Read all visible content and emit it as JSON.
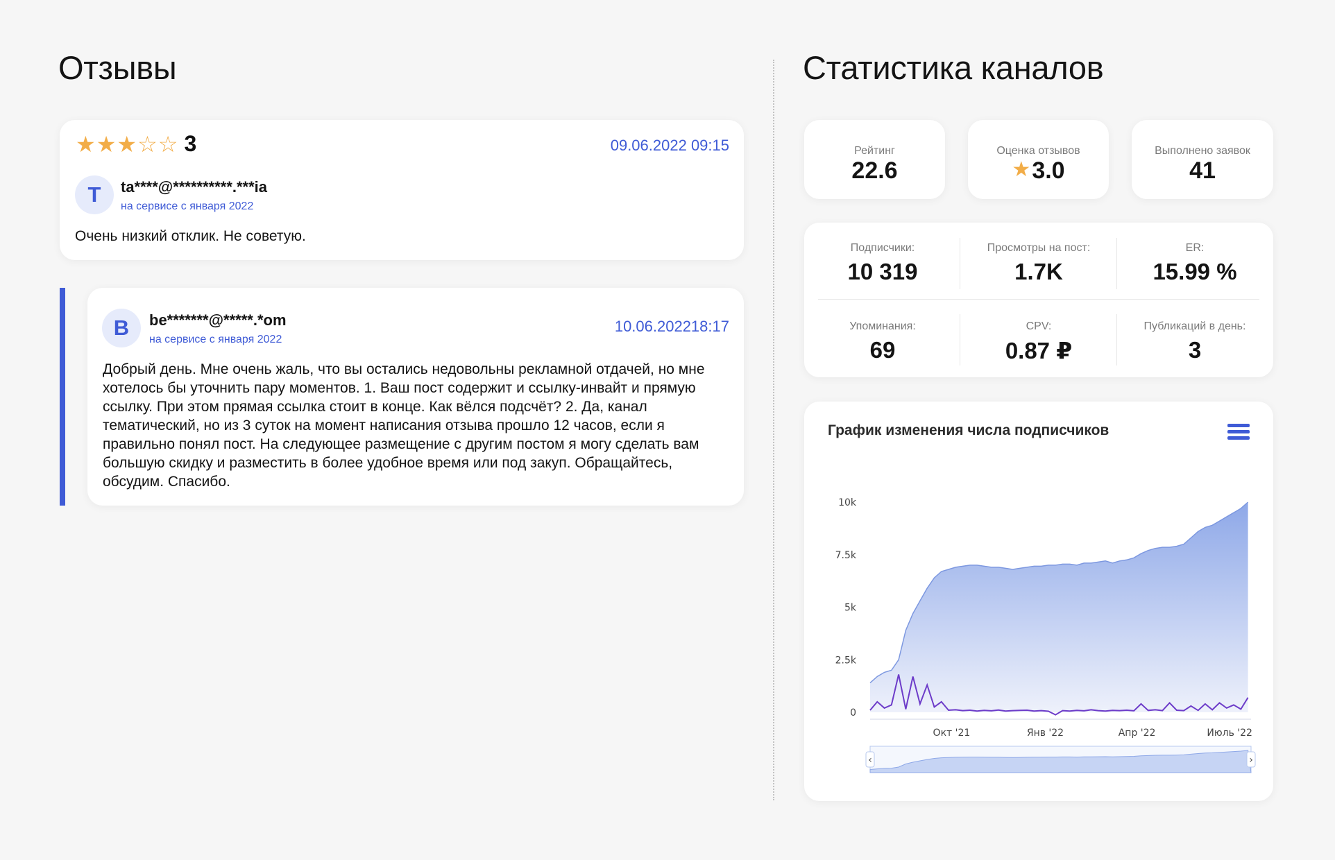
{
  "colors": {
    "accent": "#3f5bd6",
    "star": "#f2ad48",
    "area_top": "#8ea8e8",
    "area_bottom": "#eef1fb",
    "activity_line": "#6d3cc9"
  },
  "reviews_section": {
    "title": "Отзывы",
    "review": {
      "rating_value": "3",
      "stars": [
        "filled",
        "filled",
        "filled",
        "empty",
        "empty"
      ],
      "date": "09.06.2022 09:15",
      "avatar_letter": "T",
      "username": "ta****@**********.***ia",
      "since": "на сервисе с января 2022",
      "text": "Очень низкий отклик. Не советую."
    },
    "reply": {
      "date": "10.06.202218:17",
      "avatar_letter": "B",
      "username": "be*******@*****.*om",
      "since": "на сервисе с января 2022",
      "text": "Добрый день. Мне очень жаль, что вы остались недовольны рекламной отдачей, но мне хотелось бы уточнить пару моментов. 1. Ваш пост содержит и ссылку-инвайт и прямую ссылку. При этом прямая ссылка стоит в конце. Как вёлся подсчёт? 2. Да, канал тематический, но из 3 суток на момент написания отзыва прошло 12 часов, если я правильно понял пост. На следующее размещение с другим постом я могу сделать вам большую скидку и разместить в более удобное время или под закуп. Обращайтесь, обсудим. Спасибо."
    }
  },
  "stats_section": {
    "title": "Статистика каналов",
    "tiles": {
      "rating": {
        "label": "Рейтинг",
        "value": "22.6"
      },
      "review_score": {
        "label": "Оценка отзывов",
        "star": "★",
        "value": "3.0"
      },
      "orders_done": {
        "label": "Выполнено заявок",
        "value": "41"
      }
    },
    "metrics": {
      "subscribers": {
        "label": "Подписчики:",
        "value": "10 319"
      },
      "views_per_post": {
        "label": "Просмотры на пост:",
        "value": "1.7K"
      },
      "er": {
        "label": "ER:",
        "value": "15.99 %"
      },
      "mentions": {
        "label": "Упоминания:",
        "value": "69"
      },
      "cpv": {
        "label": "CPV:",
        "value": "0.87 ₽"
      },
      "posts_per_day": {
        "label": "Публикаций в день:",
        "value": "3"
      }
    },
    "chart_card": {
      "title": "График изменения числа подписчиков",
      "menu_icon": "hamburger-menu-icon"
    }
  },
  "chart_data": {
    "type": "area",
    "title": "График изменения числа подписчиков",
    "xlabel": "",
    "ylabel": "",
    "ylim": [
      0,
      10000
    ],
    "yticks": [
      0,
      2500,
      5000,
      7500,
      10000
    ],
    "ytick_labels": [
      "0",
      "2.5k",
      "5k",
      "7.5k",
      "10k"
    ],
    "xticks": [
      "Окт '21",
      "Янв '22",
      "Апр '22",
      "Июль '22"
    ],
    "grid": false,
    "legend": "none",
    "navigator": true,
    "series": [
      {
        "kind": "area",
        "x": [
          "2021-07-13",
          "2021-07-20",
          "2021-07-27",
          "2021-08-03",
          "2021-08-10",
          "2021-08-17",
          "2021-08-24",
          "2021-08-31",
          "2021-09-07",
          "2021-09-14",
          "2021-09-21",
          "2021-09-28",
          "2021-10-05",
          "2021-10-12",
          "2021-10-19",
          "2021-10-26",
          "2021-11-02",
          "2021-11-09",
          "2021-11-16",
          "2021-11-23",
          "2021-11-30",
          "2021-12-07",
          "2021-12-14",
          "2021-12-21",
          "2021-12-28",
          "2022-01-04",
          "2022-01-11",
          "2022-01-18",
          "2022-01-25",
          "2022-02-01",
          "2022-02-08",
          "2022-02-15",
          "2022-02-22",
          "2022-03-01",
          "2022-03-08",
          "2022-03-15",
          "2022-03-22",
          "2022-03-29",
          "2022-04-05",
          "2022-04-12",
          "2022-04-19",
          "2022-04-26",
          "2022-05-03",
          "2022-05-10",
          "2022-05-17",
          "2022-05-24",
          "2022-05-31",
          "2022-06-07",
          "2022-06-14",
          "2022-06-21",
          "2022-06-28",
          "2022-07-05",
          "2022-07-12",
          "2022-07-19"
        ],
        "values": [
          1400,
          1700,
          1900,
          2000,
          2500,
          3900,
          4700,
          5300,
          5900,
          6400,
          6700,
          6800,
          6900,
          6950,
          7000,
          7000,
          6950,
          6900,
          6900,
          6850,
          6800,
          6850,
          6900,
          6950,
          6950,
          7000,
          7000,
          7050,
          7050,
          7000,
          7100,
          7100,
          7150,
          7200,
          7100,
          7200,
          7250,
          7350,
          7550,
          7700,
          7800,
          7850,
          7850,
          7900,
          8000,
          8300,
          8600,
          8800,
          8900,
          9100,
          9300,
          9500,
          9700,
          10000
        ]
      },
      {
        "kind": "line",
        "name": "",
        "x": [
          "2021-07-13",
          "2021-07-20",
          "2021-07-27",
          "2021-08-03",
          "2021-08-10",
          "2021-08-17",
          "2021-08-24",
          "2021-08-31",
          "2021-09-07",
          "2021-09-14",
          "2021-09-21",
          "2021-09-28",
          "2021-10-05",
          "2021-10-12",
          "2021-10-19",
          "2021-10-26",
          "2021-11-02",
          "2021-11-09",
          "2021-11-16",
          "2021-11-23",
          "2021-11-30",
          "2021-12-07",
          "2021-12-14",
          "2021-12-21",
          "2021-12-28",
          "2022-01-04",
          "2022-01-11",
          "2022-01-18",
          "2022-01-25",
          "2022-02-01",
          "2022-02-08",
          "2022-02-15",
          "2022-02-22",
          "2022-03-01",
          "2022-03-08",
          "2022-03-15",
          "2022-03-22",
          "2022-03-29",
          "2022-04-05",
          "2022-04-12",
          "2022-04-19",
          "2022-04-26",
          "2022-05-03",
          "2022-05-10",
          "2022-05-17",
          "2022-05-24",
          "2022-05-31",
          "2022-06-07",
          "2022-06-14",
          "2022-06-21",
          "2022-06-28",
          "2022-07-05",
          "2022-07-12",
          "2022-07-19"
        ],
        "values": [
          100,
          500,
          200,
          350,
          1800,
          150,
          1700,
          400,
          1300,
          250,
          500,
          100,
          120,
          80,
          100,
          60,
          90,
          70,
          110,
          60,
          80,
          90,
          100,
          60,
          80,
          50,
          -120,
          80,
          60,
          90,
          70,
          120,
          80,
          60,
          90,
          80,
          100,
          70,
          400,
          90,
          120,
          80,
          450,
          100,
          80,
          300,
          90,
          400,
          120,
          450,
          200,
          350,
          150,
          700
        ]
      }
    ]
  }
}
